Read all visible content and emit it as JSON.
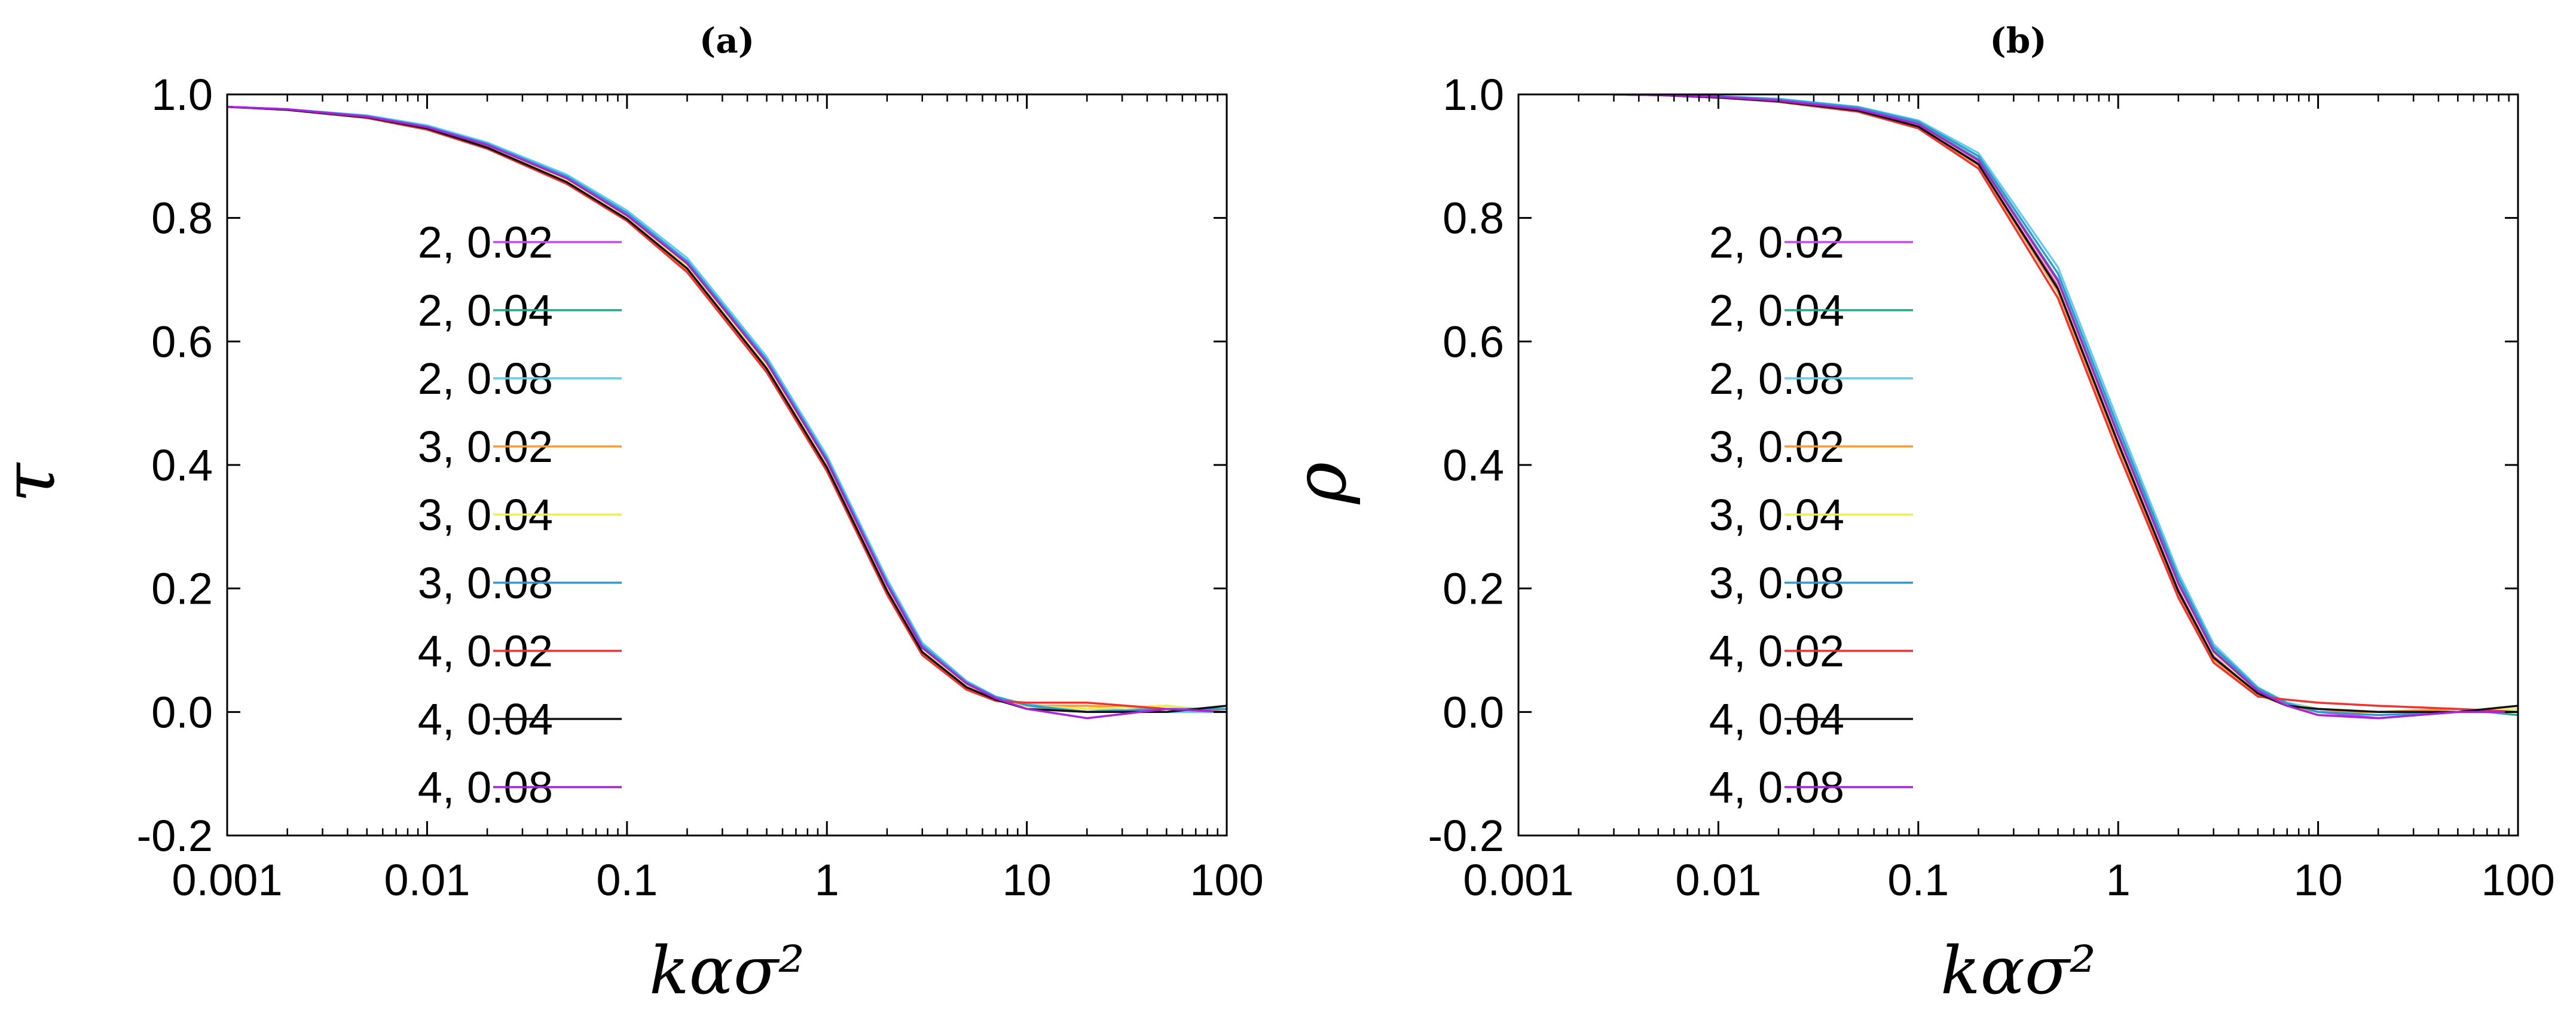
{
  "chart_data": [
    {
      "type": "line",
      "title": "(a)",
      "xlabel": "kασ²",
      "ylabel": "τ",
      "xscale": "log",
      "xlim": [
        0.001,
        100
      ],
      "ylim": [
        -0.2,
        1.0
      ],
      "x_ticks": [
        "0.001",
        "0.01",
        "0.1",
        "1",
        "10",
        "100"
      ],
      "y_ticks": [
        "-0.2",
        "0.0",
        "0.2",
        "0.4",
        "0.6",
        "0.8",
        "1.0"
      ],
      "legend_position": "upper-left",
      "x": [
        0.001,
        0.002,
        0.005,
        0.01,
        0.02,
        0.05,
        0.1,
        0.2,
        0.5,
        1,
        2,
        3,
        5,
        7,
        10,
        20,
        50,
        100
      ],
      "series": [
        {
          "name": "2, 0.02",
          "color": "#cc44ff",
          "values": [
            0.98,
            0.975,
            0.963,
            0.945,
            0.915,
            0.86,
            0.8,
            0.72,
            0.56,
            0.4,
            0.2,
            0.1,
            0.04,
            0.02,
            0.01,
            0.005,
            0.01,
            0.0
          ]
        },
        {
          "name": "2, 0.04",
          "color": "#22aa88",
          "values": [
            0.98,
            0.975,
            0.964,
            0.947,
            0.918,
            0.864,
            0.805,
            0.725,
            0.565,
            0.405,
            0.205,
            0.105,
            0.045,
            0.022,
            0.01,
            0.0,
            0.005,
            0.005
          ]
        },
        {
          "name": "2, 0.08",
          "color": "#66ccee",
          "values": [
            0.98,
            0.976,
            0.966,
            0.95,
            0.922,
            0.87,
            0.812,
            0.735,
            0.575,
            0.415,
            0.215,
            0.112,
            0.05,
            0.025,
            0.012,
            0.005,
            0.0,
            0.0
          ]
        },
        {
          "name": "3, 0.02",
          "color": "#ff9933",
          "values": [
            0.98,
            0.975,
            0.962,
            0.944,
            0.913,
            0.857,
            0.797,
            0.715,
            0.553,
            0.393,
            0.193,
            0.095,
            0.038,
            0.018,
            0.01,
            0.01,
            0.005,
            0.0
          ]
        },
        {
          "name": "3, 0.04",
          "color": "#eeee55",
          "values": [
            0.98,
            0.975,
            0.963,
            0.946,
            0.916,
            0.861,
            0.802,
            0.722,
            0.562,
            0.402,
            0.202,
            0.1,
            0.042,
            0.02,
            0.01,
            0.005,
            0.01,
            0.0
          ]
        },
        {
          "name": "3, 0.08",
          "color": "#3399cc",
          "values": [
            0.98,
            0.976,
            0.965,
            0.948,
            0.92,
            0.867,
            0.808,
            0.73,
            0.57,
            0.41,
            0.21,
            0.108,
            0.048,
            0.024,
            0.011,
            0.0,
            0.005,
            0.005
          ]
        },
        {
          "name": "4, 0.02",
          "color": "#ee3333",
          "values": [
            0.98,
            0.975,
            0.962,
            0.943,
            0.912,
            0.855,
            0.795,
            0.712,
            0.55,
            0.39,
            0.19,
            0.092,
            0.036,
            0.018,
            0.015,
            0.015,
            0.005,
            0.0
          ]
        },
        {
          "name": "4, 0.04",
          "color": "#111111",
          "values": [
            0.98,
            0.975,
            0.963,
            0.945,
            0.914,
            0.858,
            0.798,
            0.718,
            0.556,
            0.396,
            0.196,
            0.097,
            0.04,
            0.02,
            0.005,
            0.0,
            0.0,
            0.01
          ]
        },
        {
          "name": "4, 0.08",
          "color": "#aa22dd",
          "values": [
            0.98,
            0.976,
            0.964,
            0.947,
            0.918,
            0.864,
            0.804,
            0.726,
            0.566,
            0.406,
            0.206,
            0.104,
            0.046,
            0.022,
            0.005,
            -0.01,
            0.005,
            0.0
          ]
        }
      ]
    },
    {
      "type": "line",
      "title": "(b)",
      "xlabel": "kασ²",
      "ylabel": "ρ",
      "xscale": "log",
      "xlim": [
        0.001,
        100
      ],
      "ylim": [
        -0.2,
        1.0
      ],
      "x_ticks": [
        "0.001",
        "0.01",
        "0.1",
        "1",
        "10",
        "100"
      ],
      "y_ticks": [
        "-0.2",
        "0.0",
        "0.2",
        "0.4",
        "0.6",
        "0.8",
        "1.0"
      ],
      "legend_position": "upper-left",
      "x": [
        0.003,
        0.005,
        0.01,
        0.02,
        0.05,
        0.1,
        0.2,
        0.5,
        1,
        2,
        3,
        5,
        7,
        10,
        20,
        50,
        100
      ],
      "series": [
        {
          "name": "2, 0.02",
          "color": "#cc44ff",
          "values": [
            1.0,
            0.999,
            0.995,
            0.99,
            0.975,
            0.95,
            0.89,
            0.69,
            0.44,
            0.2,
            0.09,
            0.03,
            0.01,
            0.0,
            -0.01,
            0.0,
            0.0
          ]
        },
        {
          "name": "2, 0.04",
          "color": "#22aa88",
          "values": [
            1.0,
            0.999,
            0.996,
            0.991,
            0.977,
            0.953,
            0.895,
            0.7,
            0.45,
            0.21,
            0.1,
            0.035,
            0.012,
            0.0,
            0.0,
            0.005,
            -0.005
          ]
        },
        {
          "name": "2, 0.08",
          "color": "#66ccee",
          "values": [
            1.0,
            0.999,
            0.997,
            0.993,
            0.98,
            0.958,
            0.905,
            0.72,
            0.47,
            0.225,
            0.11,
            0.04,
            0.015,
            0.005,
            0.0,
            0.0,
            0.0
          ]
        },
        {
          "name": "3, 0.02",
          "color": "#ff9933",
          "values": [
            1.0,
            0.999,
            0.995,
            0.989,
            0.973,
            0.947,
            0.885,
            0.68,
            0.43,
            0.19,
            0.085,
            0.028,
            0.01,
            0.0,
            0.0,
            0.005,
            0.0
          ]
        },
        {
          "name": "3, 0.04",
          "color": "#eeee55",
          "values": [
            1.0,
            0.999,
            0.996,
            0.99,
            0.976,
            0.951,
            0.892,
            0.695,
            0.445,
            0.205,
            0.095,
            0.032,
            0.012,
            0.005,
            0.0,
            0.0,
            0.005
          ]
        },
        {
          "name": "3, 0.08",
          "color": "#3399cc",
          "values": [
            1.0,
            0.999,
            0.997,
            0.992,
            0.979,
            0.956,
            0.9,
            0.71,
            0.46,
            0.218,
            0.105,
            0.038,
            0.014,
            0.0,
            -0.005,
            0.0,
            0.0
          ]
        },
        {
          "name": "4, 0.02",
          "color": "#ee3333",
          "values": [
            1.0,
            0.999,
            0.995,
            0.988,
            0.972,
            0.945,
            0.88,
            0.67,
            0.42,
            0.185,
            0.08,
            0.025,
            0.02,
            0.015,
            0.01,
            0.005,
            0.0
          ]
        },
        {
          "name": "4, 0.04",
          "color": "#111111",
          "values": [
            1.0,
            0.999,
            0.995,
            0.989,
            0.974,
            0.948,
            0.887,
            0.685,
            0.435,
            0.195,
            0.088,
            0.03,
            0.01,
            0.005,
            0.0,
            0.0,
            0.01
          ]
        },
        {
          "name": "4, 0.08",
          "color": "#aa22dd",
          "values": [
            1.0,
            0.999,
            0.996,
            0.99,
            0.976,
            0.952,
            0.893,
            0.698,
            0.448,
            0.208,
            0.098,
            0.034,
            0.01,
            -0.005,
            -0.01,
            0.0,
            0.0
          ]
        }
      ]
    }
  ]
}
